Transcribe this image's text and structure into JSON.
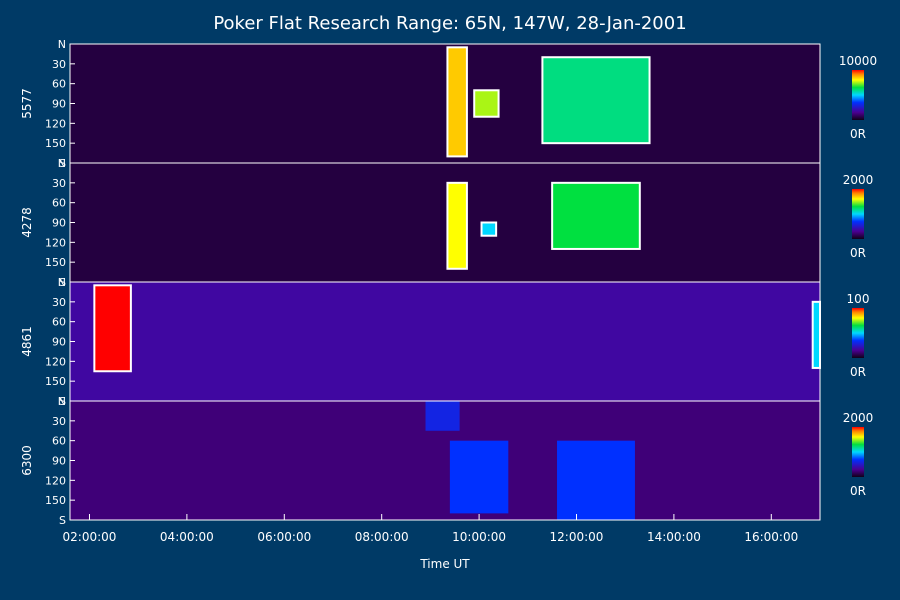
{
  "chart_data": {
    "type": "heatmap",
    "title": "Poker Flat Research Range: 65N, 147W, 28-Jan-2001",
    "xlabel": "Time UT",
    "x_ticks": [
      "02:00:00",
      "04:00:00",
      "06:00:00",
      "08:00:00",
      "10:00:00",
      "12:00:00",
      "14:00:00",
      "16:00:00"
    ],
    "x_range_hours": [
      1.6,
      17.0
    ],
    "y_ticks": [
      "N",
      "30",
      "60",
      "90",
      "120",
      "150",
      "S"
    ],
    "y_range_deg": [
      0,
      180
    ],
    "panels": [
      {
        "label": "5577",
        "colorbar": {
          "max": "10000",
          "min": "0R"
        },
        "base_level": 0.05,
        "features": [
          {
            "t0": 9.35,
            "t1": 9.75,
            "a0": 5,
            "a1": 170,
            "level": 0.85
          },
          {
            "t0": 9.9,
            "t1": 10.4,
            "a0": 70,
            "a1": 110,
            "level": 0.75
          },
          {
            "t0": 11.3,
            "t1": 13.5,
            "a0": 20,
            "a1": 150,
            "level": 0.6
          }
        ]
      },
      {
        "label": "4278",
        "colorbar": {
          "max": "2000",
          "min": "0R"
        },
        "base_level": 0.05,
        "features": [
          {
            "t0": 9.35,
            "t1": 9.75,
            "a0": 30,
            "a1": 160,
            "level": 0.8
          },
          {
            "t0": 10.05,
            "t1": 10.35,
            "a0": 90,
            "a1": 110,
            "level": 0.5
          },
          {
            "t0": 11.5,
            "t1": 13.3,
            "a0": 30,
            "a1": 130,
            "level": 0.65
          }
        ]
      },
      {
        "label": "4861",
        "colorbar": {
          "max": "100",
          "min": "0R"
        },
        "base_level": 0.18,
        "features": [
          {
            "t0": 2.1,
            "t1": 2.85,
            "a0": 5,
            "a1": 135,
            "level": 1.0
          },
          {
            "t0": 16.85,
            "t1": 17.0,
            "a0": 30,
            "a1": 130,
            "level": 0.5
          }
        ]
      },
      {
        "label": "6300",
        "colorbar": {
          "max": "2000",
          "min": "0R"
        },
        "base_level": 0.12,
        "features": [
          {
            "t0": 8.9,
            "t1": 9.6,
            "a0": 0,
            "a1": 45,
            "level": 0.3
          },
          {
            "t0": 9.4,
            "t1": 10.6,
            "a0": 60,
            "a1": 170,
            "level": 0.35
          },
          {
            "t0": 11.6,
            "t1": 13.2,
            "a0": 60,
            "a1": 180,
            "level": 0.35
          }
        ]
      }
    ]
  }
}
